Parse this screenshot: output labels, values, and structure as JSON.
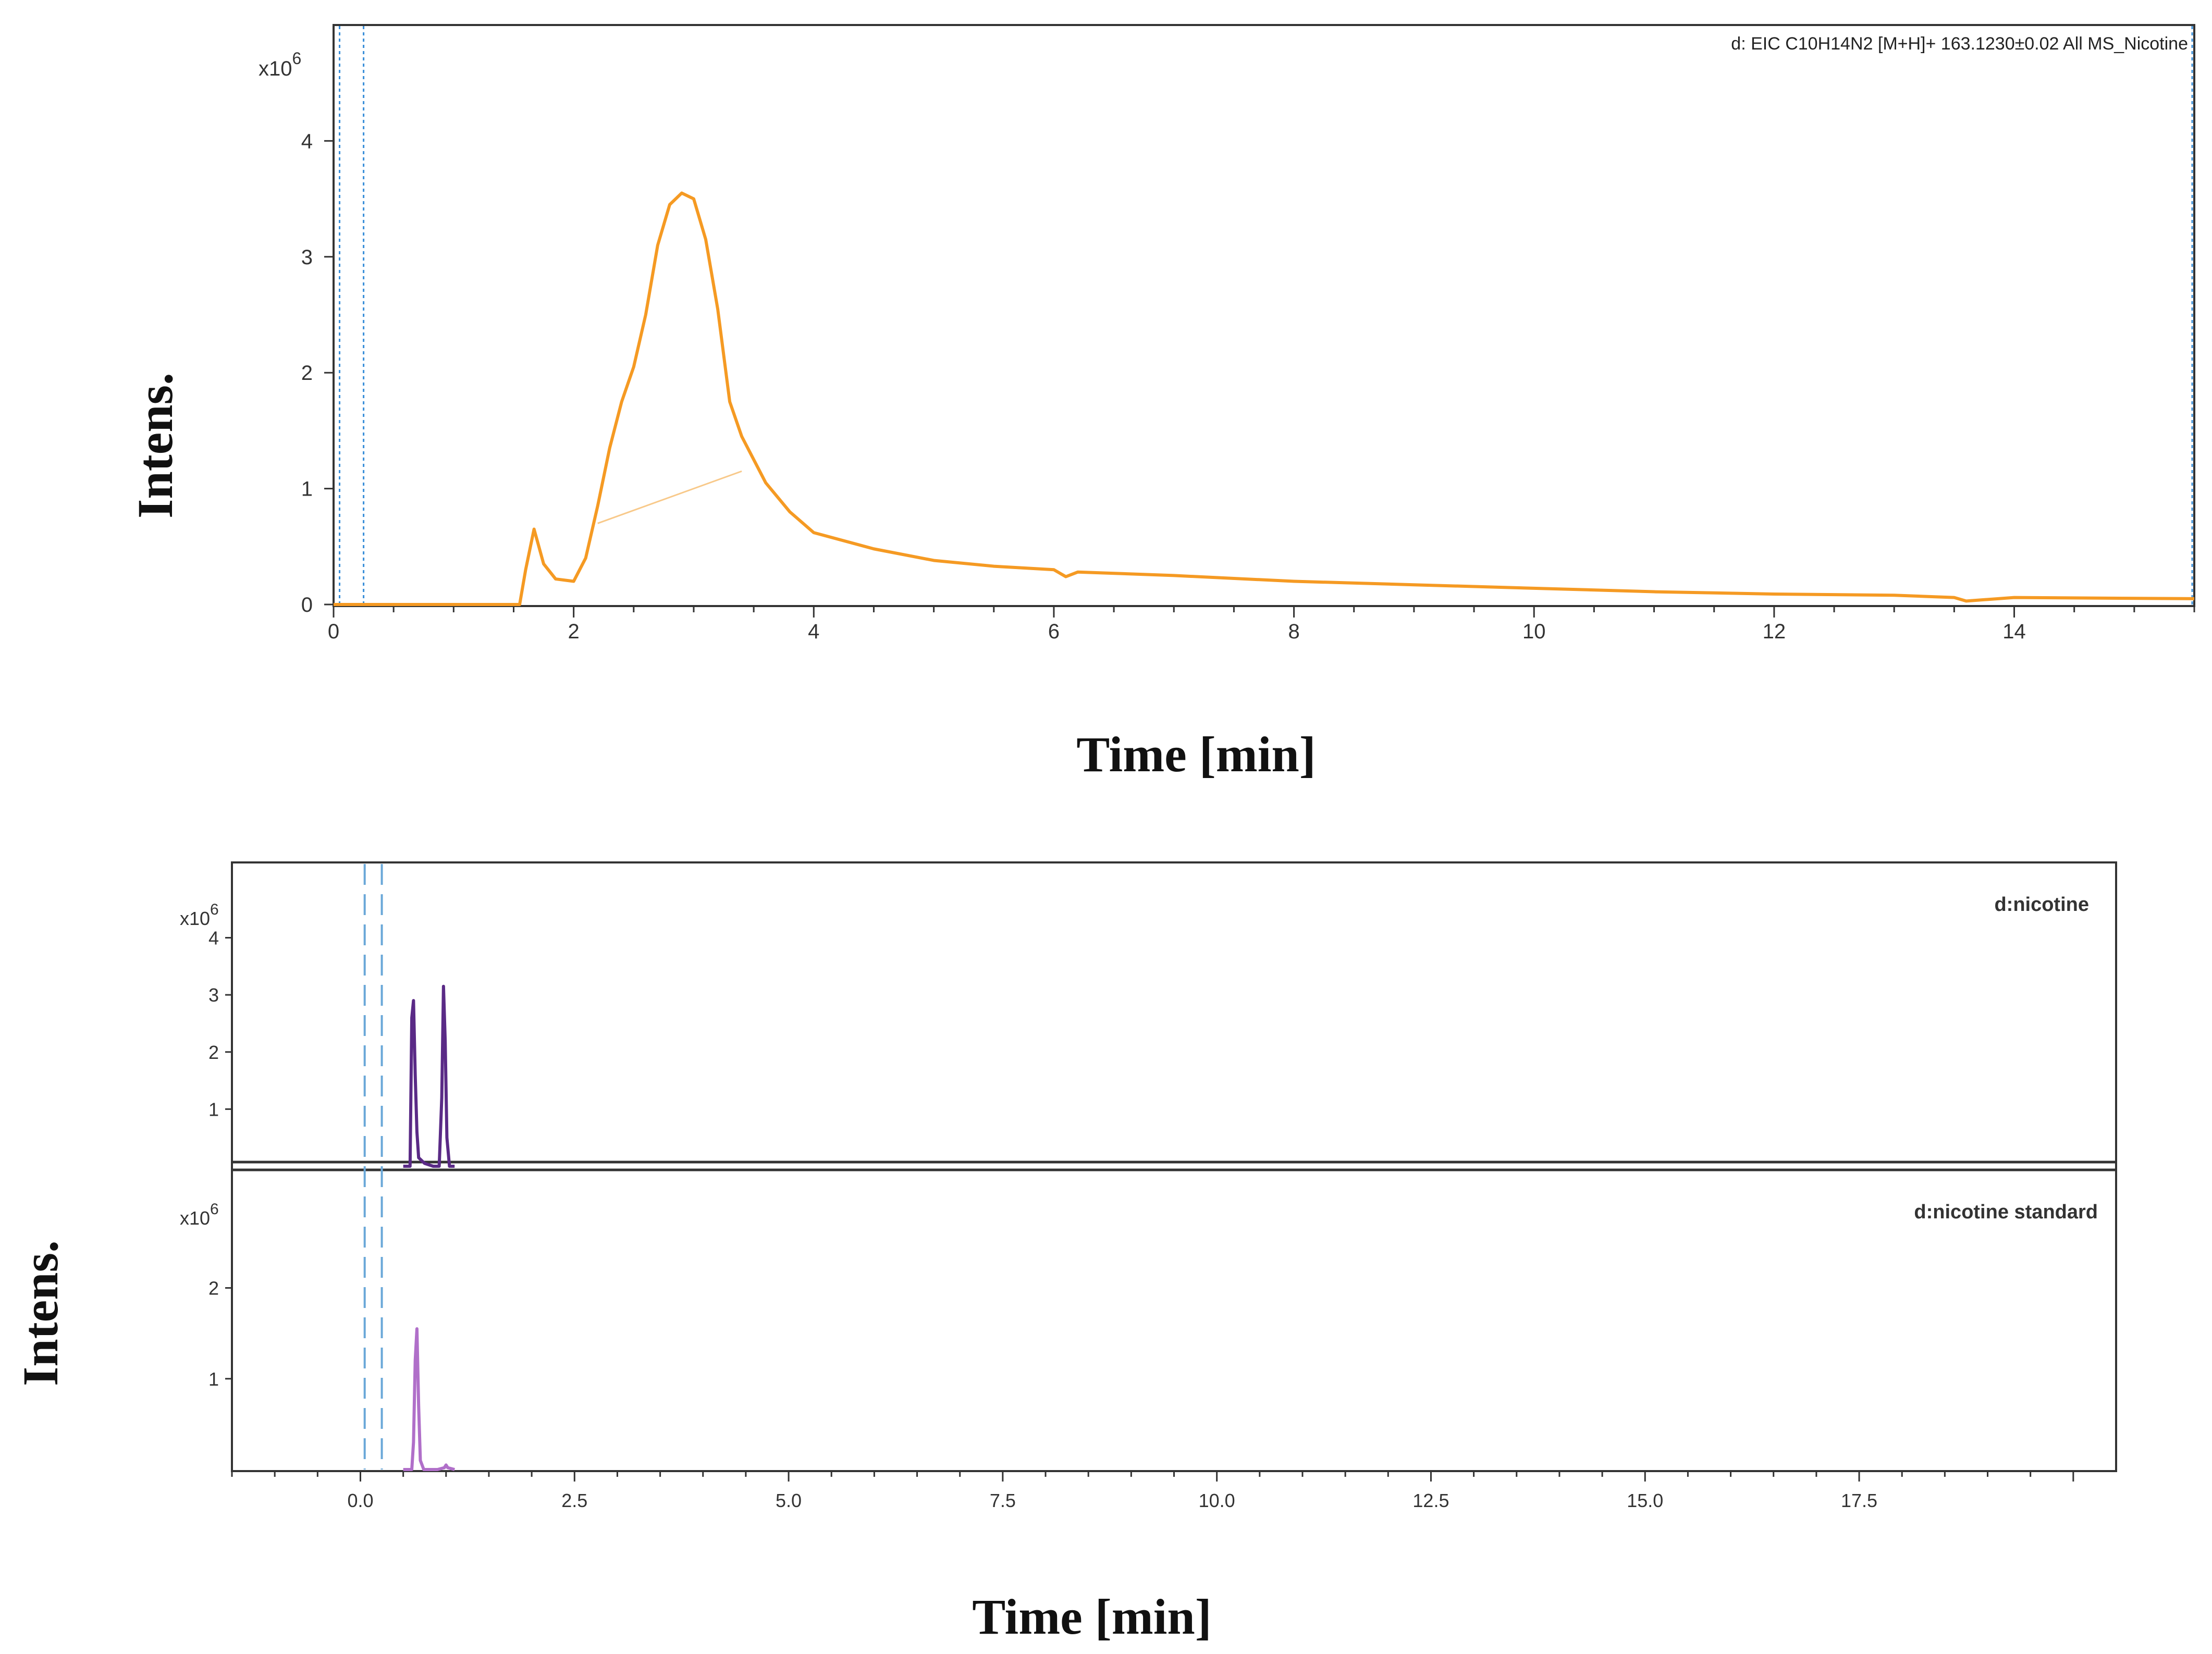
{
  "figure": {
    "top_xlabel": "Time [min]",
    "top_ylabel": "Intens.",
    "bottom_xlabel": "Time [min]",
    "bottom_ylabel": "Intens."
  },
  "chart_data": [
    {
      "type": "line",
      "legend": "d: EIC C10H14N2 [M+H]+ 163.1230±0.02 All MS_Nicotine",
      "y_multiplier": "x10",
      "y_exponent": "6",
      "xlim": [
        0,
        15.5
      ],
      "ylim": [
        0,
        5
      ],
      "xticks": [
        0,
        2,
        4,
        6,
        8,
        10,
        12,
        14
      ],
      "yticks": [
        0,
        1,
        2,
        3,
        4
      ],
      "colors": {
        "trace": "#f59a23",
        "marker": "#3a8fd9",
        "baseline": "#f8c98a"
      },
      "markers_x": [
        0.05,
        0.25
      ],
      "integration_baseline": {
        "x": [
          2.2,
          3.4
        ],
        "y": [
          0.7,
          1.15
        ]
      },
      "series": [
        {
          "x": [
            0,
            1.55,
            1.6,
            1.67,
            1.75,
            1.85,
            2.0,
            2.1,
            2.2,
            2.3,
            2.4,
            2.5,
            2.6,
            2.7,
            2.8,
            2.9,
            3.0,
            3.1,
            3.2,
            3.3,
            3.4,
            3.6,
            3.8,
            4.0,
            4.5,
            5.0,
            5.5,
            6.0,
            6.1,
            6.2,
            7.0,
            8.0,
            9.0,
            10.0,
            11.0,
            12.0,
            13.0,
            13.5,
            13.6,
            14.0,
            15.5
          ],
          "y": [
            0,
            0,
            0.3,
            0.65,
            0.35,
            0.22,
            0.2,
            0.4,
            0.85,
            1.35,
            1.75,
            2.05,
            2.5,
            3.1,
            3.45,
            3.55,
            3.5,
            3.15,
            2.55,
            1.75,
            1.45,
            1.05,
            0.8,
            0.62,
            0.48,
            0.38,
            0.33,
            0.3,
            0.24,
            0.28,
            0.25,
            0.2,
            0.17,
            0.14,
            0.11,
            0.09,
            0.08,
            0.06,
            0.03,
            0.06,
            0.05
          ]
        }
      ]
    },
    {
      "type": "line",
      "legend": "d:nicotine",
      "y_multiplier": "x10",
      "y_exponent": "6",
      "xlim": [
        -1.5,
        20.5
      ],
      "ylim": [
        0,
        5.3
      ],
      "yticks": [
        1,
        2,
        3,
        4
      ],
      "colors": {
        "trace": "#5a2a86",
        "marker": "#6aa8d8"
      },
      "markers_x": [
        0.05,
        0.25
      ],
      "series": [
        {
          "x": [
            0.5,
            0.58,
            0.6,
            0.62,
            0.64,
            0.66,
            0.68,
            0.75,
            0.85,
            0.92,
            0.95,
            0.97,
            0.99,
            1.01,
            1.04,
            1.1
          ],
          "y": [
            0,
            0,
            2.6,
            2.9,
            1.6,
            0.6,
            0.15,
            0.05,
            0,
            0,
            1.2,
            3.15,
            2.2,
            0.5,
            0,
            0
          ]
        }
      ]
    },
    {
      "type": "line",
      "legend": "d:nicotine standard",
      "y_multiplier": "x10",
      "y_exponent": "6",
      "xlim": [
        -1.5,
        20.5
      ],
      "ylim": [
        0,
        3.3
      ],
      "xticks": [
        0.0,
        2.5,
        5.0,
        7.5,
        10.0,
        12.5,
        15.0,
        17.5
      ],
      "xtick_labels": [
        "0.0",
        "2.5",
        "5.0",
        "7.5",
        "10.0",
        "12.5",
        "15.0",
        "17.5"
      ],
      "yticks": [
        1,
        2
      ],
      "colors": {
        "trace": "#b06fc9",
        "marker": "#6aa8d8"
      },
      "markers_x": [
        0.05,
        0.25
      ],
      "series": [
        {
          "x": [
            0.5,
            0.6,
            0.62,
            0.64,
            0.66,
            0.68,
            0.7,
            0.74,
            0.9,
            0.98,
            1.0,
            1.02,
            1.1
          ],
          "y": [
            0,
            0,
            0.3,
            1.2,
            1.55,
            0.7,
            0.1,
            0,
            0,
            0.02,
            0.05,
            0.02,
            0
          ]
        }
      ]
    }
  ]
}
